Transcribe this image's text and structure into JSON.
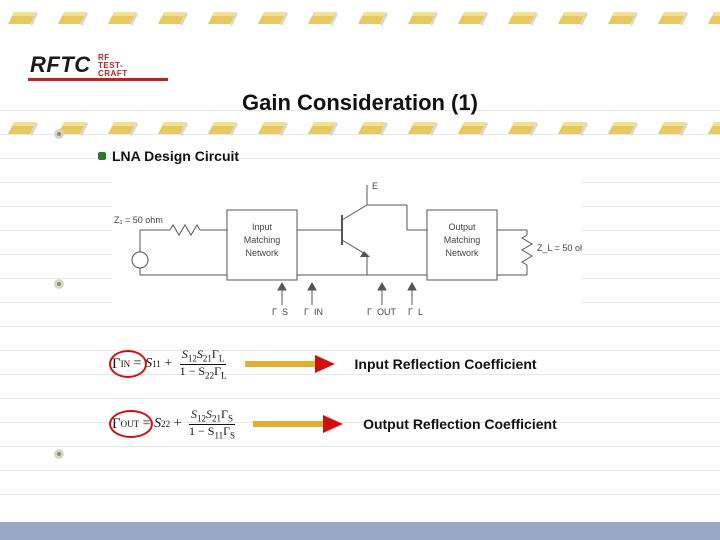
{
  "logo": {
    "main": "RFTC",
    "sub1": "RF",
    "sub2": "TEST-CRAFT"
  },
  "title": "Gain Consideration (1)",
  "section": "LNA Design Circuit",
  "circuit": {
    "z_source": "Z₁ = 50 ohm",
    "in_match1": "Input",
    "in_match2": "Matching",
    "in_match3": "Network",
    "out_match1": "Output",
    "out_match2": "Matching",
    "out_match3": "Network",
    "z_load": "Z_L = 50 ohm",
    "gamma_s": "Γ_S",
    "gamma_in": "Γ_IN",
    "gamma_out": "Γ_OUT",
    "gamma_l": "Γ_L",
    "top_e": "E"
  },
  "eq1": {
    "lhs_sym": "Γ",
    "lhs_sub": "IN",
    "rhs_a": "S",
    "rhs_a_sub": "11",
    "num_a": "S",
    "num_a_sub": "12",
    "num_b": "S",
    "num_b_sub": "21",
    "num_c": "Γ",
    "num_c_sub": "L",
    "den_a": "1 − S",
    "den_a_sub": "22",
    "den_b": "Γ",
    "den_b_sub": "L",
    "label": "Input Reflection Coefficient"
  },
  "eq2": {
    "lhs_sym": "Γ",
    "lhs_sub": "OUT",
    "rhs_a": "S",
    "rhs_a_sub": "22",
    "num_a": "S",
    "num_a_sub": "12",
    "num_b": "S",
    "num_b_sub": "21",
    "num_c": "Γ",
    "num_c_sub": "S",
    "den_a": "1 − S",
    "den_a_sub": "11",
    "den_b": "Γ",
    "den_b_sub": "S",
    "label": "Output Reflection Coefficient"
  },
  "colors": {
    "arrow_shaft": "#e0b030",
    "arrow_head": "#d01010",
    "eraser_body": "#e8c860",
    "eraser_highlight": "#f4e090",
    "eraser_band": "#d0d8e0",
    "circle": "#d01010",
    "footer": "#9aa8c8"
  },
  "layout": {
    "ruled_line_gap": 24,
    "ruled_line_start": 110,
    "ruled_line_count": 17,
    "eraser_row_top_1": 10,
    "eraser_row_top_2": 120,
    "eraser_count": 15
  }
}
